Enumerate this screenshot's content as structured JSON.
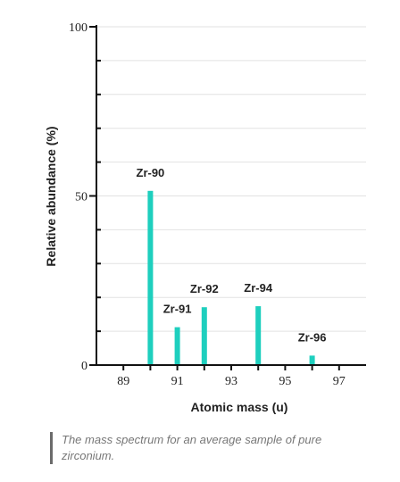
{
  "chart_data": {
    "type": "bar",
    "title": "",
    "xlabel": "Atomic mass (u)",
    "ylabel": "Relative abundance (%)",
    "xlim": [
      88,
      98
    ],
    "ylim": [
      0,
      100
    ],
    "x_ticks": [
      89,
      90,
      91,
      92,
      93,
      94,
      95,
      96,
      97
    ],
    "x_tick_labels": [
      "89",
      "91",
      "93",
      "95",
      "97"
    ],
    "y_ticks": [
      0,
      10,
      20,
      30,
      40,
      50,
      60,
      70,
      80,
      90,
      100
    ],
    "y_tick_labels": [
      "0",
      "50",
      "100"
    ],
    "grid": "horizontal",
    "bar_color": "#1ecfbe",
    "bars": [
      {
        "label": "Zr-90",
        "x": 90,
        "value": 51.5
      },
      {
        "label": "Zr-91",
        "x": 91,
        "value": 11.2
      },
      {
        "label": "Zr-92",
        "x": 92,
        "value": 17.1
      },
      {
        "label": "Zr-94",
        "x": 94,
        "value": 17.4
      },
      {
        "label": "Zr-96",
        "x": 96,
        "value": 2.8
      }
    ]
  },
  "caption": "The mass spectrum for an average sample of pure zirconium."
}
